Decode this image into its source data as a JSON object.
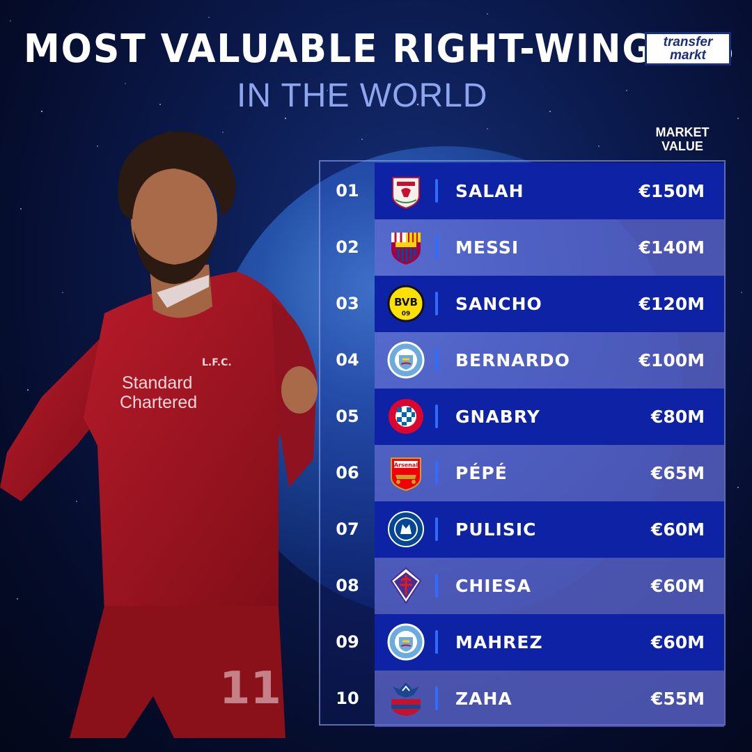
{
  "header": {
    "title": "MOST VALUABLE RIGHT-WINGERS",
    "subtitle": "IN THE WORLD",
    "logo_line1": "transfer",
    "logo_line2": "markt"
  },
  "table": {
    "column_header": "MARKET\nVALUE",
    "rows": [
      {
        "rank": "01",
        "crest": "liverpool-crest",
        "name": "SALAH",
        "value": "€150M",
        "value_m": 150
      },
      {
        "rank": "02",
        "crest": "barcelona-crest",
        "name": "MESSI",
        "value": "€140M",
        "value_m": 140
      },
      {
        "rank": "03",
        "crest": "dortmund-crest",
        "name": "SANCHO",
        "value": "€120M",
        "value_m": 120
      },
      {
        "rank": "04",
        "crest": "man-city-crest",
        "name": "BERNARDO",
        "value": "€100M",
        "value_m": 100
      },
      {
        "rank": "05",
        "crest": "bayern-crest",
        "name": "GNABRY",
        "value": "€80M",
        "value_m": 80
      },
      {
        "rank": "06",
        "crest": "arsenal-crest",
        "name": "PÉPÉ",
        "value": "€65M",
        "value_m": 65
      },
      {
        "rank": "07",
        "crest": "chelsea-crest",
        "name": "PULISIC",
        "value": "€60M",
        "value_m": 60
      },
      {
        "rank": "08",
        "crest": "fiorentina-crest",
        "name": "CHIESA",
        "value": "€60M",
        "value_m": 60
      },
      {
        "rank": "09",
        "crest": "man-city-crest",
        "name": "MAHREZ",
        "value": "€60M",
        "value_m": 60
      },
      {
        "rank": "10",
        "crest": "crystal-palace-crest",
        "name": "ZAHA",
        "value": "€55M",
        "value_m": 55
      }
    ]
  },
  "player_image": {
    "shirt_sponsor": "Standard Chartered",
    "shirt_number": "11",
    "club_badge_text": "L.F.C."
  },
  "colors": {
    "background": "#0b1a4d",
    "row_dark": "#0e22a6",
    "row_light": "#626cd2",
    "accent_divider": "#2f6cff",
    "subtitle": "#8fa6ee",
    "jersey": "#a31523"
  }
}
